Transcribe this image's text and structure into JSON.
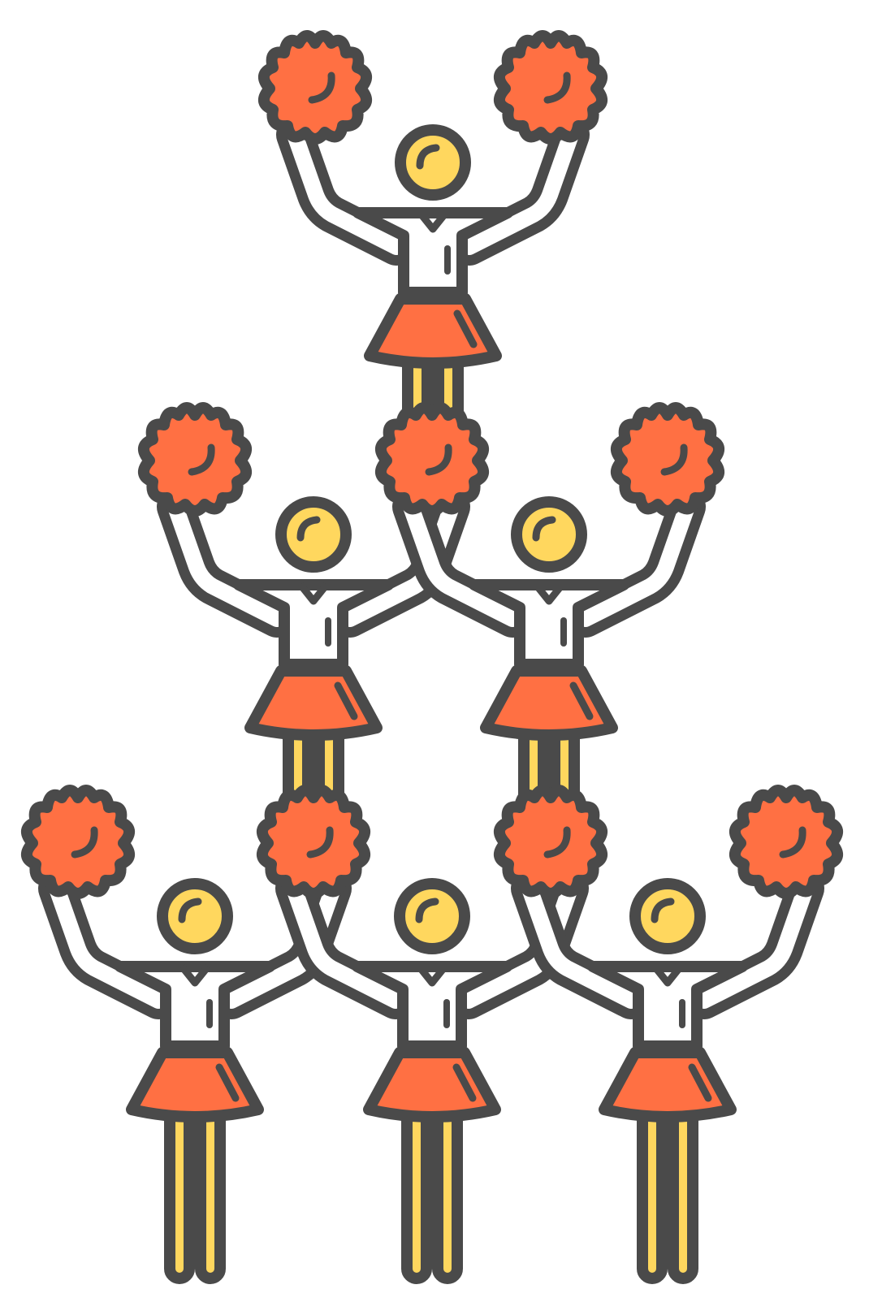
{
  "illustration": {
    "subject": "cheerleader-pyramid-icon",
    "colors": {
      "outline": "#4a4a4a",
      "skirt": "#ff7043",
      "pompom": "#ff7043",
      "skin": "#ffd75e",
      "legs": "#ffd75e",
      "shirt": "#ffffff",
      "background": "#ffffff"
    },
    "rows": [
      {
        "name": "top",
        "cheerleaders": 1
      },
      {
        "name": "middle",
        "cheerleaders": 2
      },
      {
        "name": "bottom",
        "cheerleaders": 3
      }
    ]
  }
}
